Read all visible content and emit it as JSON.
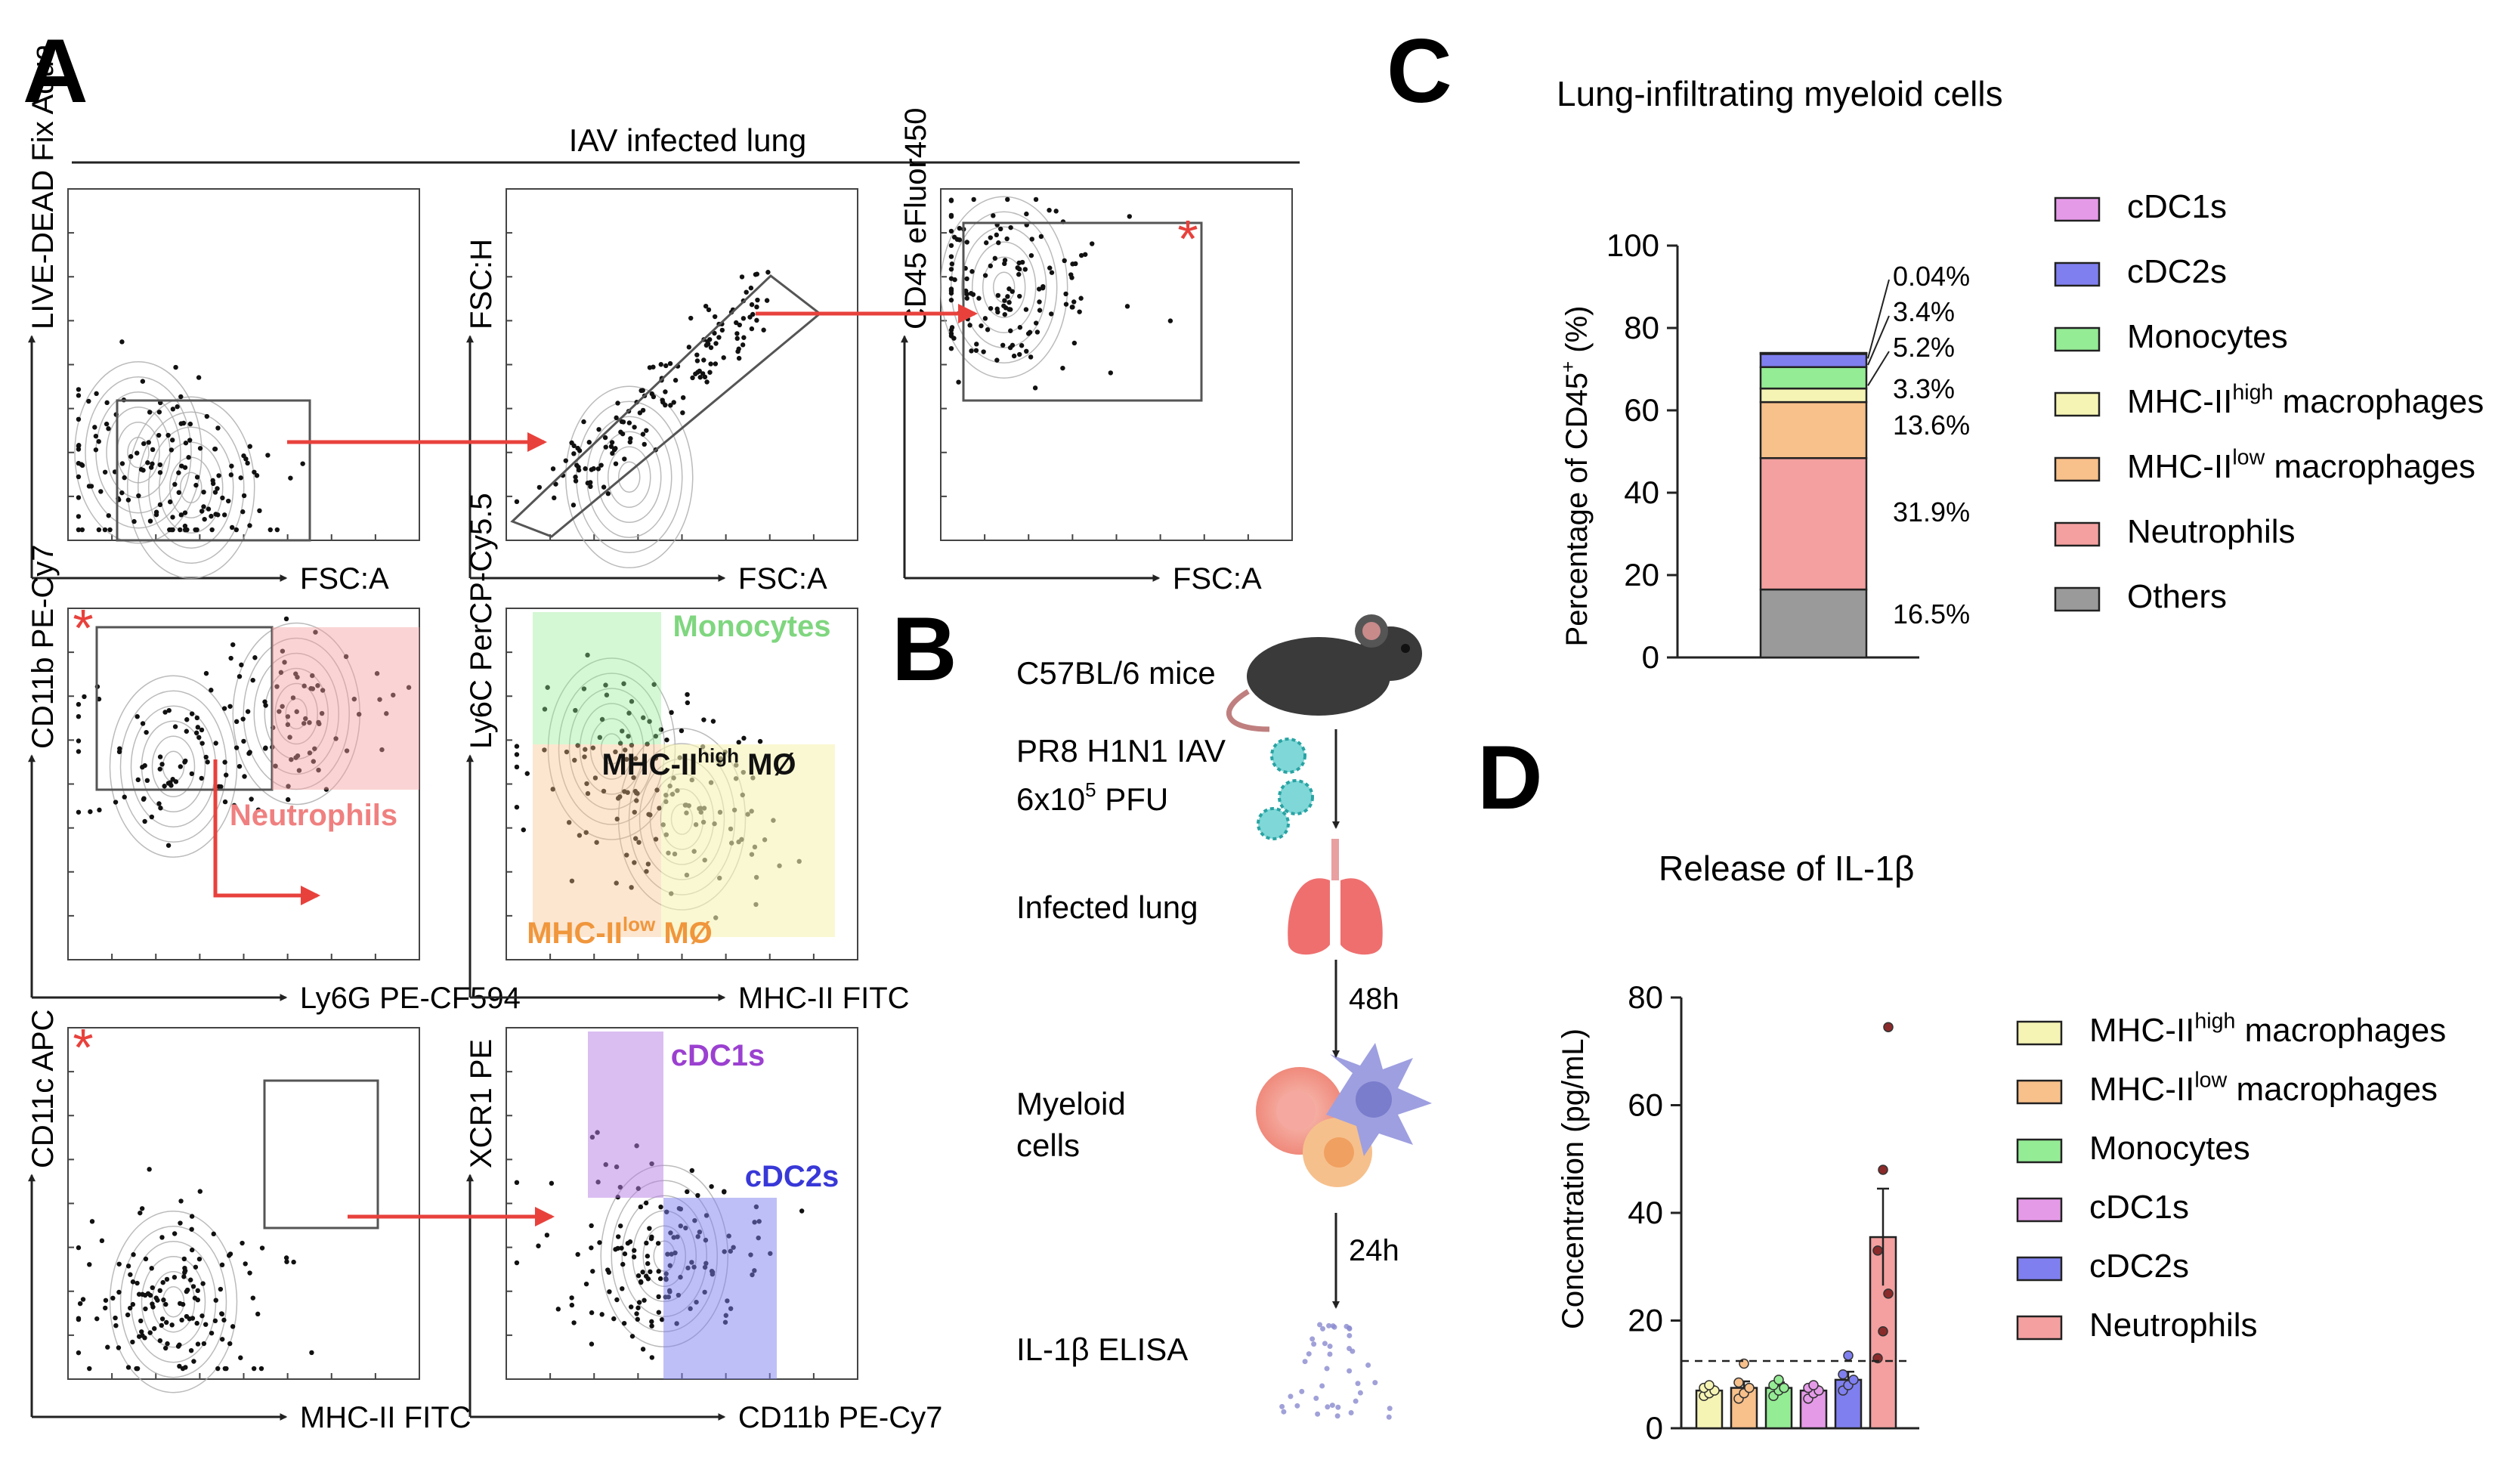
{
  "panels": {
    "A": {
      "letter": "A",
      "header": "IAV infected lung",
      "plots": [
        {
          "ylabel": "LIVE-DEAD Fix Aqua",
          "xlabel": "FSC:A"
        },
        {
          "ylabel": "FSC:H",
          "xlabel": "FSC:A"
        },
        {
          "ylabel": "CD45 eFluor450",
          "xlabel": "FSC:A"
        },
        {
          "ylabel": "CD11b PE-Cy7",
          "xlabel": "Ly6G PE-CF594"
        },
        {
          "ylabel": "Ly6C PerCP-Cy5.5",
          "xlabel": "MHC-II FITC"
        },
        {
          "ylabel": "CD11c APC",
          "xlabel": "MHC-II FITC"
        },
        {
          "ylabel": "XCR1 PE",
          "xlabel": "CD11b PE-Cy7"
        }
      ],
      "gates": {
        "neutrophils": "Neutrophils",
        "monocytes": "Monocytes",
        "mhc_high": {
          "base": "MHC-II",
          "sup": "high",
          "suffix": " MØ"
        },
        "mhc_low": {
          "base": "MHC-II",
          "sup": "low",
          "suffix": " MØ"
        },
        "cdc1": "cDC1s",
        "cdc2": "cDC2s"
      },
      "star": "*"
    },
    "B": {
      "letter": "B",
      "steps": {
        "mice": "C57BL/6 mice",
        "virus_line1": "PR8 H1N1 IAV",
        "virus_line2_base": "6x10",
        "virus_line2_sup": "5",
        "virus_line2_suffix": " PFU",
        "lung": "Infected lung",
        "cells_line1": "Myeloid",
        "cells_line2": "cells",
        "elisa": "IL-1β  ELISA"
      },
      "times": [
        "48h",
        "24h"
      ]
    },
    "C": {
      "letter": "C"
    },
    "D": {
      "letter": "D"
    }
  },
  "chart_data": [
    {
      "type": "bar",
      "stacked": true,
      "title": "Lung-infiltrating myeloid cells",
      "ylabel_base": "Percentage of CD45",
      "ylabel_sup": "+",
      "ylabel_suffix": " (%)",
      "ylim": [
        0,
        100
      ],
      "yticks": [
        "0",
        "20",
        "40",
        "60",
        "80",
        "100"
      ],
      "series": [
        {
          "name": "Others",
          "value": 16.5,
          "label": "16.5%",
          "color": "#9a9a9a"
        },
        {
          "name": "Neutrophils",
          "value": 31.9,
          "label": "31.9%",
          "color": "#f4a0a0"
        },
        {
          "name": "MHC-IIlow macrophages",
          "value": 13.6,
          "label": "13.6%",
          "color": "#f8c08a"
        },
        {
          "name": "MHC-IIhigh macrophages",
          "value": 3.3,
          "label": "3.3%",
          "color": "#f6f4b4"
        },
        {
          "name": "Monocytes",
          "value": 5.2,
          "label": "5.2%",
          "color": "#94ec94"
        },
        {
          "name": "cDC2s",
          "value": 3.4,
          "label": "3.4%",
          "color": "#7f7ff0"
        },
        {
          "name": "cDC1s",
          "value": 0.04,
          "label": "0.04%",
          "color": "#e59ae8"
        }
      ],
      "legend": [
        {
          "base": "cDC1s",
          "sup": "",
          "suffix": "",
          "color": "#e59ae8"
        },
        {
          "base": "cDC2s",
          "sup": "",
          "suffix": "",
          "color": "#7f7ff0"
        },
        {
          "base": "Monocytes",
          "sup": "",
          "suffix": "",
          "color": "#94ec94"
        },
        {
          "base": "MHC-II",
          "sup": "high",
          "suffix": " macrophages",
          "color": "#f6f4b4"
        },
        {
          "base": "MHC-II",
          "sup": "low",
          "suffix": " macrophages",
          "color": "#f8c08a"
        },
        {
          "base": "Neutrophils",
          "sup": "",
          "suffix": "",
          "color": "#f4a0a0"
        },
        {
          "base": "Others",
          "sup": "",
          "suffix": "",
          "color": "#9a9a9a"
        }
      ]
    },
    {
      "type": "bar",
      "title": "Release of IL-1β",
      "ylabel": "Concentration (pg/mL)",
      "ylim": [
        0,
        80
      ],
      "yticks": [
        "0",
        "20",
        "40",
        "60",
        "80"
      ],
      "dashed_line": 12.5,
      "bars": [
        {
          "name": "MHC-IIhigh macrophages",
          "mean": 7,
          "sem": 0.8,
          "points": [
            6,
            6.5,
            7,
            7.5,
            8
          ],
          "color": "#f6f4b4"
        },
        {
          "name": "MHC-IIlow macrophages",
          "mean": 7.5,
          "sem": 1.2,
          "points": [
            5.5,
            6.5,
            7.5,
            8.5,
            12
          ],
          "color": "#f8c08a"
        },
        {
          "name": "Monocytes",
          "mean": 7.5,
          "sem": 1,
          "points": [
            6,
            7,
            7.5,
            8,
            9
          ],
          "color": "#94ec94"
        },
        {
          "name": "cDC1s",
          "mean": 7,
          "sem": 0.8,
          "points": [
            5.5,
            6.5,
            7,
            7.5,
            8
          ],
          "color": "#e59ae8"
        },
        {
          "name": "cDC2s",
          "mean": 9,
          "sem": 1.5,
          "points": [
            7,
            8,
            9,
            10,
            13.5
          ],
          "color": "#7f7ff0"
        },
        {
          "name": "Neutrophils",
          "mean": 35.5,
          "sem": 9,
          "points": [
            13,
            18,
            25,
            33,
            48,
            74.5
          ],
          "color": "#f4a0a0"
        }
      ],
      "legend": [
        {
          "base": "MHC-II",
          "sup": "high",
          "suffix": " macrophages",
          "color": "#f6f4b4"
        },
        {
          "base": "MHC-II",
          "sup": "low",
          "suffix": " macrophages",
          "color": "#f8c08a"
        },
        {
          "base": "Monocytes",
          "sup": "",
          "suffix": "",
          "color": "#94ec94"
        },
        {
          "base": "cDC1s",
          "sup": "",
          "suffix": "",
          "color": "#e59ae8"
        },
        {
          "base": "cDC2s",
          "sup": "",
          "suffix": "",
          "color": "#7f7ff0"
        },
        {
          "base": "Neutrophils",
          "sup": "",
          "suffix": "",
          "color": "#f4a0a0"
        }
      ]
    }
  ]
}
